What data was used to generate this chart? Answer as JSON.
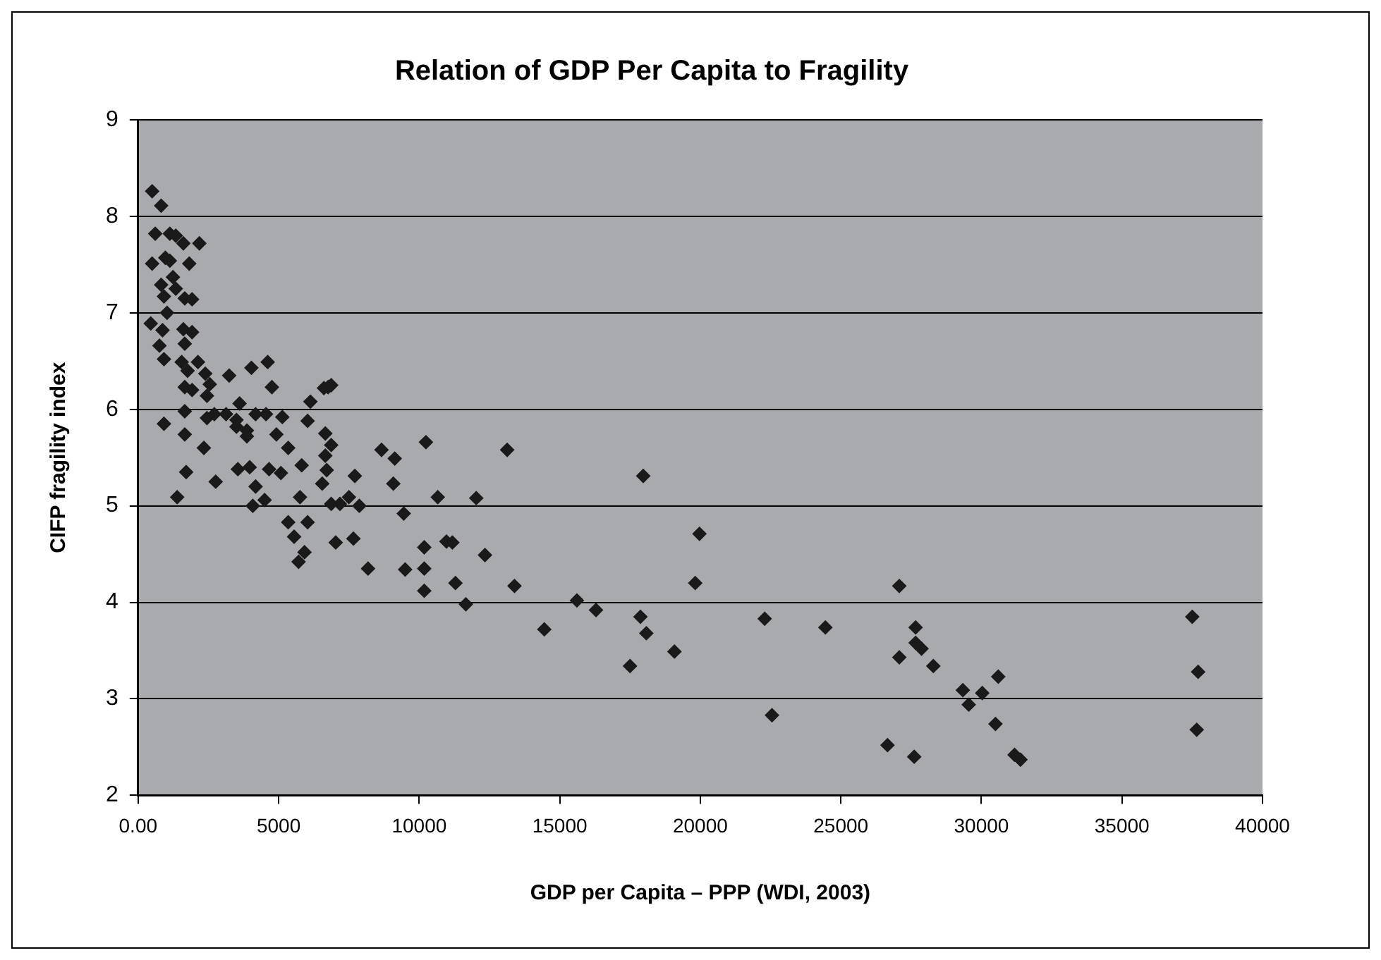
{
  "chart_data": {
    "type": "scatter",
    "title": "Relation of GDP Per Capita to Fragility",
    "xlabel": "GDP per Capita – PPP (WDI, 2003)",
    "ylabel": "CIFP fragility index",
    "x": [
      500,
      820,
      610,
      1130,
      1340,
      1610,
      2180,
      500,
      970,
      1130,
      1820,
      820,
      1240,
      1340,
      920,
      1660,
      1920,
      1030,
      450,
      870,
      1610,
      1920,
      760,
      1660,
      920,
      1550,
      2130,
      1760,
      2390,
      3240,
      4030,
      4610,
      1660,
      1920,
      2550,
      2450,
      4760,
      3610,
      6130,
      6760,
      6870,
      6610,
      1660,
      920,
      2450,
      2710,
      3130,
      3500,
      3500,
      3870,
      3870,
      4180,
      4550,
      5130,
      6030,
      6660,
      1660,
      4920,
      6870,
      6660,
      2340,
      5340,
      8660,
      9130,
      10240,
      1710,
      3550,
      3970,
      4660,
      5080,
      5820,
      6710,
      7710,
      2760,
      4180,
      6550,
      9080,
      1390,
      4500,
      5760,
      7500,
      10660,
      12030,
      4080,
      6870,
      7180,
      7870,
      9450,
      5340,
      6030,
      5550,
      7030,
      7660,
      10180,
      10970,
      11180,
      12340,
      5920,
      5710,
      8180,
      9500,
      10180,
      11290,
      10180,
      11660,
      13130,
      17970,
      19970,
      13390,
      19820,
      15610,
      16290,
      14450,
      17870,
      18080,
      19080,
      17500,
      22290,
      27080,
      24450,
      27660,
      27660,
      27870,
      27080,
      28290,
      30600,
      29340,
      30030,
      29550,
      30500,
      26660,
      27610,
      31180,
      31390,
      37500,
      37710,
      37660,
      22550
    ],
    "series": [
      {
        "color": "#1a1a1a",
        "values": [
          8.26,
          8.11,
          7.82,
          7.82,
          7.8,
          7.72,
          7.72,
          7.51,
          7.57,
          7.54,
          7.51,
          7.29,
          7.37,
          7.25,
          7.17,
          7.15,
          7.14,
          7.0,
          6.89,
          6.82,
          6.83,
          6.8,
          6.66,
          6.68,
          6.52,
          6.49,
          6.49,
          6.4,
          6.37,
          6.35,
          6.43,
          6.49,
          6.23,
          6.2,
          6.26,
          6.14,
          6.23,
          6.06,
          6.08,
          6.23,
          6.25,
          6.22,
          5.98,
          5.85,
          5.91,
          5.95,
          5.95,
          5.89,
          5.82,
          5.78,
          5.72,
          5.95,
          5.95,
          5.92,
          5.88,
          5.75,
          5.74,
          5.74,
          5.63,
          5.52,
          5.6,
          5.6,
          5.58,
          5.49,
          5.66,
          5.35,
          5.38,
          5.4,
          5.38,
          5.34,
          5.42,
          5.37,
          5.31,
          5.25,
          5.2,
          5.23,
          5.23,
          5.09,
          5.06,
          5.09,
          5.09,
          5.09,
          5.08,
          5.0,
          5.02,
          5.02,
          5.0,
          4.92,
          4.83,
          4.83,
          4.68,
          4.62,
          4.66,
          4.57,
          4.63,
          4.62,
          4.49,
          4.52,
          4.42,
          4.35,
          4.34,
          4.35,
          4.2,
          4.12,
          3.98,
          5.58,
          5.31,
          4.71,
          4.17,
          4.2,
          4.02,
          3.92,
          3.72,
          3.85,
          3.68,
          3.49,
          3.34,
          3.83,
          4.17,
          3.74,
          3.74,
          3.58,
          3.52,
          3.43,
          3.34,
          3.23,
          3.09,
          3.06,
          2.94,
          2.74,
          2.52,
          2.4,
          2.42,
          2.37,
          3.85,
          3.28,
          2.68,
          2.83
        ]
      }
    ],
    "xlim": [
      0,
      40000
    ],
    "xticks": [
      {
        "value": 0,
        "label": "0.00"
      },
      5000,
      10000,
      15000,
      20000,
      25000,
      30000,
      35000,
      40000
    ],
    "ylim": [
      2,
      9
    ],
    "yticks": [
      2,
      3,
      4,
      5,
      6,
      7,
      8,
      9
    ],
    "grid": "y",
    "legend": false,
    "marker": "diamond"
  }
}
